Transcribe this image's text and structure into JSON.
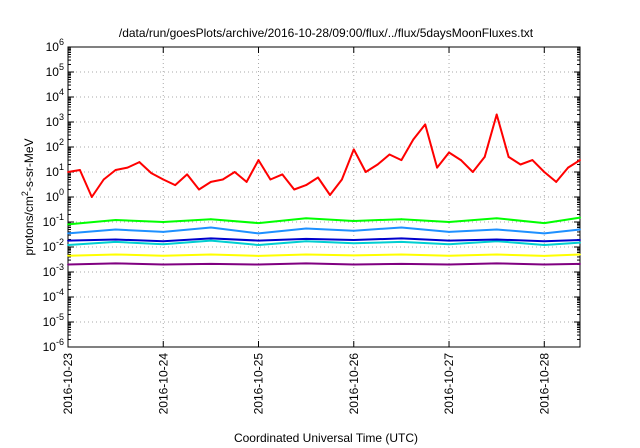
{
  "chart_data": {
    "type": "line",
    "title": "/data/run/goesPlots/archive/2016-10-28/09:00/flux/../flux/5daysMoonFluxes.txt",
    "xlabel": "Coordinated Universal Time (UTC)",
    "ylabel_base": "protons/cm",
    "ylabel_sup": "2",
    "ylabel_rest": "-s-sr-MeV",
    "y_scale": "log",
    "ylim": [
      1e-06,
      1000000.0
    ],
    "y_ticks": [
      {
        "base": "10",
        "exp": "-6"
      },
      {
        "base": "10",
        "exp": "-5"
      },
      {
        "base": "10",
        "exp": "-4"
      },
      {
        "base": "10",
        "exp": "-3"
      },
      {
        "base": "10",
        "exp": "-2"
      },
      {
        "base": "10",
        "exp": "-1"
      },
      {
        "base": "10",
        "exp": "0"
      },
      {
        "base": "10",
        "exp": "1"
      },
      {
        "base": "10",
        "exp": "2"
      },
      {
        "base": "10",
        "exp": "3"
      },
      {
        "base": "10",
        "exp": "4"
      },
      {
        "base": "10",
        "exp": "5"
      },
      {
        "base": "10",
        "exp": "6"
      }
    ],
    "xlim": [
      "2016-10-23 00:00",
      "2016-10-28 09:00"
    ],
    "x_ticks": [
      "2016-10-23",
      "2016-10-24",
      "2016-10-25",
      "2016-10-26",
      "2016-10-27",
      "2016-10-28"
    ],
    "grid": true,
    "legend": "none",
    "series": [
      {
        "color": "#ff0000",
        "x": [
          "2016-10-23 00:00",
          "2016-10-23 03:00",
          "2016-10-23 06:00",
          "2016-10-23 09:00",
          "2016-10-23 12:00",
          "2016-10-23 15:00",
          "2016-10-23 18:00",
          "2016-10-23 21:00",
          "2016-10-24 00:00",
          "2016-10-24 03:00",
          "2016-10-24 06:00",
          "2016-10-24 09:00",
          "2016-10-24 12:00",
          "2016-10-24 15:00",
          "2016-10-24 18:00",
          "2016-10-24 21:00",
          "2016-10-25 00:00",
          "2016-10-25 03:00",
          "2016-10-25 06:00",
          "2016-10-25 09:00",
          "2016-10-25 12:00",
          "2016-10-25 15:00",
          "2016-10-25 18:00",
          "2016-10-25 21:00",
          "2016-10-26 00:00",
          "2016-10-26 03:00",
          "2016-10-26 06:00",
          "2016-10-26 09:00",
          "2016-10-26 12:00",
          "2016-10-26 15:00",
          "2016-10-26 18:00",
          "2016-10-26 21:00",
          "2016-10-27 00:00",
          "2016-10-27 03:00",
          "2016-10-27 06:00",
          "2016-10-27 09:00",
          "2016-10-27 12:00",
          "2016-10-27 15:00",
          "2016-10-27 18:00",
          "2016-10-27 21:00",
          "2016-10-28 00:00",
          "2016-10-28 03:00",
          "2016-10-28 06:00",
          "2016-10-28 09:00"
        ],
        "values": [
          10,
          12,
          1.0,
          5,
          12,
          15,
          25,
          9,
          5,
          3,
          8,
          2,
          4,
          5,
          10,
          4,
          30,
          5,
          8,
          2,
          3,
          6,
          1.2,
          5,
          80,
          10,
          20,
          50,
          30,
          200,
          800,
          15,
          60,
          30,
          10,
          40,
          2000,
          40,
          20,
          30,
          10,
          4,
          15,
          30
        ]
      },
      {
        "color": "#00ff00",
        "x": [
          "2016-10-23 00:00",
          "2016-10-23 12:00",
          "2016-10-24 00:00",
          "2016-10-24 12:00",
          "2016-10-25 00:00",
          "2016-10-25 12:00",
          "2016-10-26 00:00",
          "2016-10-26 12:00",
          "2016-10-27 00:00",
          "2016-10-27 12:00",
          "2016-10-28 00:00",
          "2016-10-28 09:00"
        ],
        "values": [
          0.08,
          0.12,
          0.1,
          0.13,
          0.09,
          0.14,
          0.11,
          0.13,
          0.1,
          0.14,
          0.09,
          0.15
        ]
      },
      {
        "color": "#1e90ff",
        "x": [
          "2016-10-23 00:00",
          "2016-10-23 12:00",
          "2016-10-24 00:00",
          "2016-10-24 12:00",
          "2016-10-25 00:00",
          "2016-10-25 12:00",
          "2016-10-26 00:00",
          "2016-10-26 12:00",
          "2016-10-27 00:00",
          "2016-10-27 12:00",
          "2016-10-28 00:00",
          "2016-10-28 09:00"
        ],
        "values": [
          0.035,
          0.05,
          0.04,
          0.06,
          0.035,
          0.055,
          0.045,
          0.06,
          0.04,
          0.05,
          0.035,
          0.05
        ]
      },
      {
        "color": "#00ced1",
        "x": [
          "2016-10-23 00:00",
          "2016-10-23 12:00",
          "2016-10-24 00:00",
          "2016-10-24 12:00",
          "2016-10-25 00:00",
          "2016-10-25 12:00",
          "2016-10-26 00:00",
          "2016-10-26 12:00",
          "2016-10-27 00:00",
          "2016-10-27 12:00",
          "2016-10-28 00:00",
          "2016-10-28 09:00"
        ],
        "values": [
          0.012,
          0.016,
          0.013,
          0.018,
          0.012,
          0.017,
          0.014,
          0.016,
          0.013,
          0.017,
          0.012,
          0.015
        ]
      },
      {
        "color": "#0000cd",
        "x": [
          "2016-10-23 00:00",
          "2016-10-23 12:00",
          "2016-10-24 00:00",
          "2016-10-24 12:00",
          "2016-10-25 00:00",
          "2016-10-25 12:00",
          "2016-10-26 00:00",
          "2016-10-26 12:00",
          "2016-10-27 00:00",
          "2016-10-27 12:00",
          "2016-10-28 00:00",
          "2016-10-28 09:00"
        ],
        "values": [
          0.018,
          0.02,
          0.017,
          0.022,
          0.018,
          0.021,
          0.019,
          0.022,
          0.018,
          0.02,
          0.017,
          0.019
        ]
      },
      {
        "color": "#ffff00",
        "x": [
          "2016-10-23 00:00",
          "2016-10-23 12:00",
          "2016-10-24 00:00",
          "2016-10-24 12:00",
          "2016-10-25 00:00",
          "2016-10-25 12:00",
          "2016-10-26 00:00",
          "2016-10-26 12:00",
          "2016-10-27 00:00",
          "2016-10-27 12:00",
          "2016-10-28 00:00",
          "2016-10-28 09:00"
        ],
        "values": [
          0.0045,
          0.005,
          0.0045,
          0.005,
          0.0044,
          0.005,
          0.0046,
          0.005,
          0.0045,
          0.005,
          0.0044,
          0.005
        ]
      },
      {
        "color": "#800080",
        "x": [
          "2016-10-23 00:00",
          "2016-10-23 12:00",
          "2016-10-24 00:00",
          "2016-10-24 12:00",
          "2016-10-25 00:00",
          "2016-10-25 12:00",
          "2016-10-26 00:00",
          "2016-10-26 12:00",
          "2016-10-27 00:00",
          "2016-10-27 12:00",
          "2016-10-28 00:00",
          "2016-10-28 09:00"
        ],
        "values": [
          0.002,
          0.0022,
          0.002,
          0.0021,
          0.002,
          0.0022,
          0.002,
          0.0021,
          0.002,
          0.0022,
          0.002,
          0.0021
        ]
      }
    ]
  }
}
